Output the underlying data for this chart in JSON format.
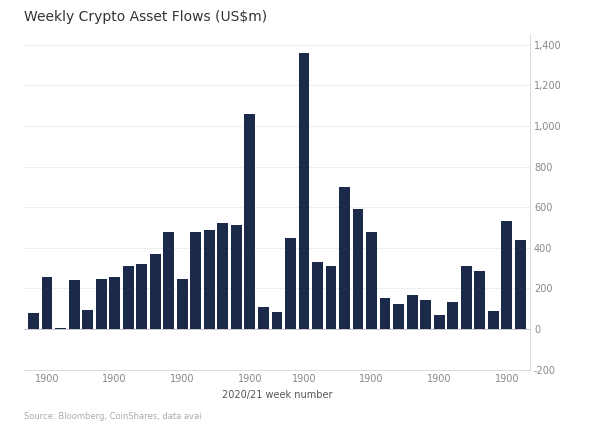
{
  "title": "Weekly Crypto Asset Flows (US$m)",
  "xlabel": "2020/21 week number",
  "source_text": "Source: Bloomberg, CoinShares, data avai",
  "bar_color": "#1b2a4a",
  "background_color": "#ffffff",
  "ylim": [
    -200,
    1450
  ],
  "yticks": [
    -200,
    0,
    200,
    400,
    600,
    800,
    1000,
    1200,
    1400
  ],
  "values": [
    80,
    255,
    5,
    240,
    95,
    245,
    255,
    310,
    320,
    370,
    480,
    245,
    480,
    490,
    520,
    510,
    1060,
    110,
    85,
    450,
    1360,
    330,
    310,
    700,
    590,
    480,
    155,
    125,
    170,
    145,
    70,
    135,
    310,
    285,
    90,
    530,
    440
  ],
  "xtick_positions": [
    1,
    6,
    11,
    16,
    20,
    25,
    30,
    35
  ],
  "title_fontsize": 10,
  "tick_fontsize": 7,
  "source_fontsize": 6
}
